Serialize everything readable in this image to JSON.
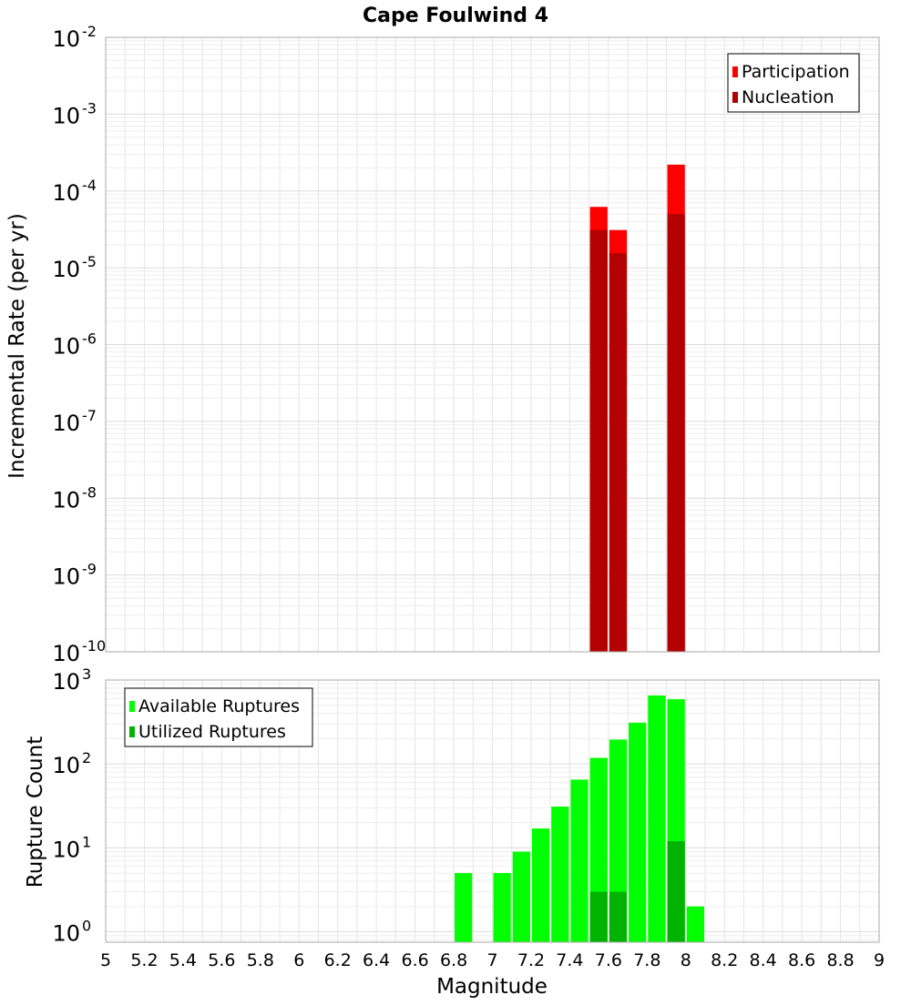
{
  "chart_data": [
    {
      "type": "bar",
      "title": "Cape Foulwind 4",
      "xlabel": "",
      "ylabel": "Incremental Rate (per yr)",
      "xlim": [
        5,
        9
      ],
      "ylim": [
        1e-10,
        0.01
      ],
      "yscale": "log",
      "bar_width": 0.1,
      "grid": true,
      "legend_position": "top-right",
      "y_ticks": [
        {
          "exp": "-10",
          "value": 1e-10
        },
        {
          "exp": "-9",
          "value": 1e-09
        },
        {
          "exp": "-8",
          "value": 1e-08
        },
        {
          "exp": "-7",
          "value": 1e-07
        },
        {
          "exp": "-6",
          "value": 1e-06
        },
        {
          "exp": "-5",
          "value": 1e-05
        },
        {
          "exp": "-4",
          "value": 0.0001
        },
        {
          "exp": "-3",
          "value": 0.001
        },
        {
          "exp": "-2",
          "value": 0.01
        }
      ],
      "series": [
        {
          "name": "Participation",
          "color": "#ff0000",
          "points": [
            {
              "x": 7.55,
              "y": 6.2e-05
            },
            {
              "x": 7.65,
              "y": 3.1e-05
            },
            {
              "x": 7.95,
              "y": 0.00022
            }
          ]
        },
        {
          "name": "Nucleation",
          "color": "#b30000",
          "points": [
            {
              "x": 7.55,
              "y": 3.1e-05
            },
            {
              "x": 7.65,
              "y": 1.55e-05
            },
            {
              "x": 7.95,
              "y": 5e-05
            }
          ]
        }
      ]
    },
    {
      "type": "bar",
      "title": "",
      "xlabel": "Magnitude",
      "ylabel": "Rupture Count",
      "xlim": [
        5,
        9
      ],
      "ylim": [
        0.75,
        1000
      ],
      "yscale": "log",
      "bar_width": 0.1,
      "grid": true,
      "legend_position": "top-left",
      "x_ticks": [
        "5",
        "5.2",
        "5.4",
        "5.6",
        "5.8",
        "6",
        "6.2",
        "6.4",
        "6.6",
        "6.8",
        "7",
        "7.2",
        "7.4",
        "7.6",
        "7.8",
        "8",
        "8.2",
        "8.4",
        "8.6",
        "8.8",
        "9"
      ],
      "y_ticks": [
        {
          "exp": "0",
          "value": 1
        },
        {
          "exp": "1",
          "value": 10
        },
        {
          "exp": "2",
          "value": 100
        },
        {
          "exp": "3",
          "value": 1000
        }
      ],
      "series": [
        {
          "name": "Available Ruptures",
          "color": "#00ff00",
          "points": [
            {
              "x": 6.85,
              "y": 5
            },
            {
              "x": 7.05,
              "y": 5
            },
            {
              "x": 7.15,
              "y": 9
            },
            {
              "x": 7.25,
              "y": 17
            },
            {
              "x": 7.35,
              "y": 31
            },
            {
              "x": 7.45,
              "y": 65
            },
            {
              "x": 7.55,
              "y": 118
            },
            {
              "x": 7.65,
              "y": 195
            },
            {
              "x": 7.75,
              "y": 310
            },
            {
              "x": 7.85,
              "y": 655
            },
            {
              "x": 7.95,
              "y": 590
            },
            {
              "x": 8.05,
              "y": 2
            }
          ]
        },
        {
          "name": "Utilized Ruptures",
          "color": "#00b300",
          "points": [
            {
              "x": 7.55,
              "y": 3
            },
            {
              "x": 7.65,
              "y": 3
            },
            {
              "x": 7.95,
              "y": 12
            }
          ]
        }
      ]
    }
  ]
}
